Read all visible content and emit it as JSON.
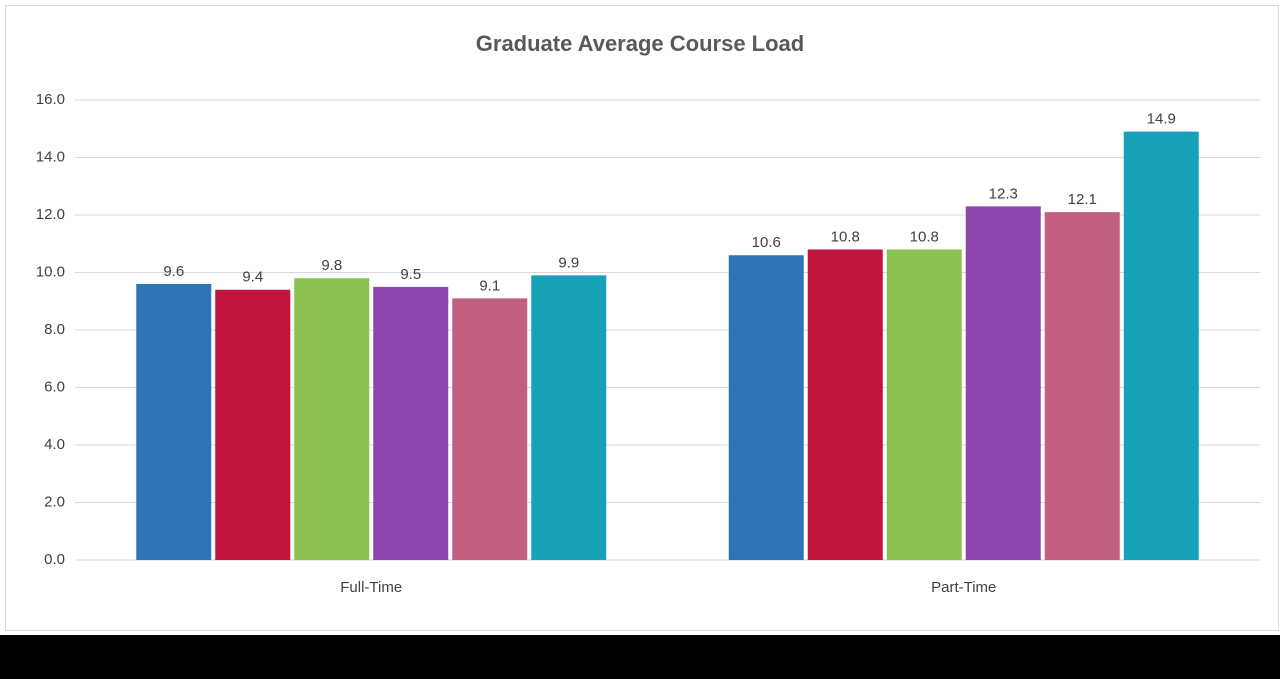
{
  "chart_data": {
    "type": "bar",
    "title": "Graduate Average Course Load",
    "categories": [
      "Full-Time",
      "Part-Time"
    ],
    "series": [
      {
        "color": "#2e75b6",
        "values": [
          9.6,
          10.6
        ]
      },
      {
        "color": "#c0143c",
        "values": [
          9.4,
          10.8
        ]
      },
      {
        "color": "#8cc152",
        "values": [
          9.8,
          10.8
        ]
      },
      {
        "color": "#8e44ad",
        "values": [
          9.5,
          12.3
        ]
      },
      {
        "color": "#c0607e",
        "values": [
          9.1,
          12.1
        ]
      },
      {
        "color": "#17a2b8",
        "values": [
          9.9,
          14.9
        ]
      }
    ],
    "ylim": [
      0,
      16
    ],
    "yticks": [
      {
        "value": 0,
        "label": "0.0"
      },
      {
        "value": 2,
        "label": "2.0"
      },
      {
        "value": 4,
        "label": "4.0"
      },
      {
        "value": 6,
        "label": "6.0"
      },
      {
        "value": 8,
        "label": "8.0"
      },
      {
        "value": 10,
        "label": "10.0"
      },
      {
        "value": 12,
        "label": "12.0"
      },
      {
        "value": 14,
        "label": "14.0"
      },
      {
        "value": 16,
        "label": "16.0"
      }
    ],
    "grid": true
  }
}
